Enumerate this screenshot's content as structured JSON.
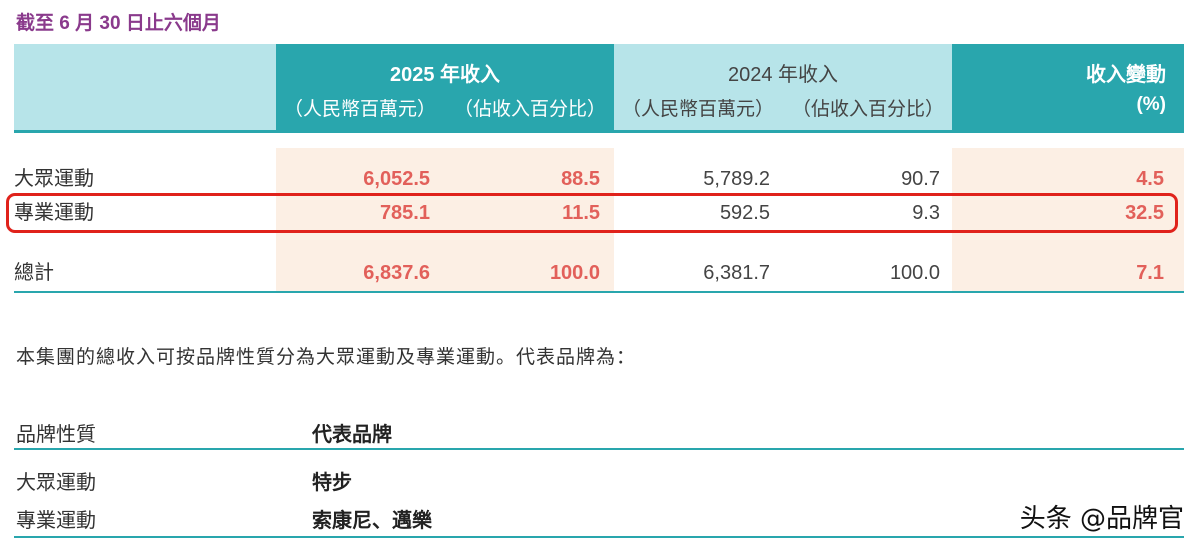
{
  "period_title": "截至 6 月 30 日止六個月",
  "header": {
    "y2025": {
      "title": "2025 年收入",
      "col1": "（人民幣百萬元）",
      "col2": "（佔收入百分比）"
    },
    "y2024": {
      "title": "2024 年收入",
      "col1": "（人民幣百萬元）",
      "col2": "（佔收入百分比）"
    },
    "change": {
      "title": "收入變動",
      "unit": "(%)"
    }
  },
  "rows": [
    {
      "label": "大眾運動",
      "rev2025": "6,052.5",
      "pct2025": "88.5",
      "rev2024": "5,789.2",
      "pct2024": "90.7",
      "change": "4.5"
    },
    {
      "label": "專業運動",
      "rev2025": "785.1",
      "pct2025": "11.5",
      "rev2024": "592.5",
      "pct2024": "9.3",
      "change": "32.5"
    },
    {
      "label": "總計",
      "rev2025": "6,837.6",
      "pct2025": "100.0",
      "rev2024": "6,381.7",
      "pct2024": "100.0",
      "change": "7.1"
    }
  ],
  "paragraph": "本集團的總收入可按品牌性質分為大眾運動及專業運動。代表品牌為：",
  "brand_table": {
    "header": {
      "nature": "品牌性質",
      "brands": "代表品牌"
    },
    "rows": [
      {
        "nature": "大眾運動",
        "brands": "特步"
      },
      {
        "nature": "專業運動",
        "brands": "索康尼、邁樂"
      }
    ]
  },
  "watermark": "头条 @品牌官",
  "colors": {
    "teal": "#29a6ad",
    "light_teal": "#b7e4e9",
    "peach": "#fcefe4",
    "accent_red": "#e2605a",
    "highlight_border": "#e0221b",
    "period_purple": "#8a3a8c"
  }
}
